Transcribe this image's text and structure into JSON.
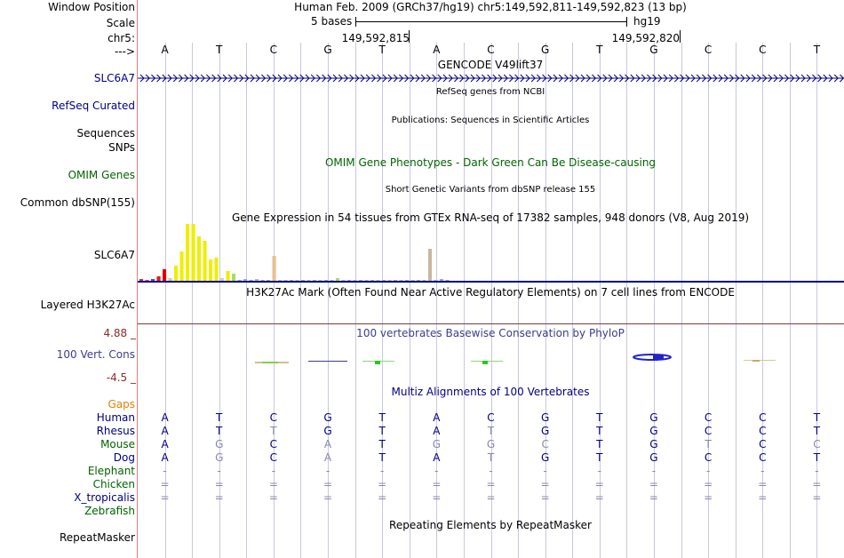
{
  "header": {
    "window_position_label": "Window Position",
    "window_position_value": "Human Feb. 2009 (GRCh37/hg19)   chr5:149,592,811-149,592,823 (13 bp)",
    "scale_label": "Scale",
    "scale_bar_text": "5 bases",
    "assembly": "hg19",
    "chrom_label": "chr5:",
    "coord_left": "149,592,815",
    "coord_right": "149,592,820",
    "strand_label": "--->"
  },
  "sequence": [
    "A",
    "T",
    "C",
    "G",
    "T",
    "A",
    "C",
    "G",
    "T",
    "G",
    "C",
    "C",
    "T"
  ],
  "tracks": {
    "gencode_title": "GENCODE V49lift37",
    "gencode_label": "SLC6A7",
    "refseq_title": "RefSeq genes from NCBI",
    "refseq_label": "RefSeq Curated",
    "publications_title": "Publications: Sequences in Scientific Articles",
    "sequences_label": "Sequences",
    "snps_label": "SNPs",
    "omim_title": "OMIM Gene Phenotypes - Dark Green Can Be Disease-causing",
    "omim_label": "OMIM Genes",
    "dbsnp_title": "Short Genetic Variants from dbSNP release 155",
    "dbsnp_label": "Common dbSNP(155)",
    "gtex_title": "Gene Expression in 54 tissues from GTEx RNA-seq of 17382 samples, 948 donors (V8, Aug 2019)",
    "gtex_label": "SLC6A7",
    "h3k27ac_title": "H3K27Ac Mark (Often Found Near Active Regulatory Elements) on 7 cell lines from ENCODE",
    "h3k27ac_label": "Layered H3K27Ac",
    "phylop_title": "100 vertebrates Basewise Conservation by PhyloP",
    "phylop_label": "100 Vert. Cons",
    "phylop_max": "4.88 _",
    "phylop_min": "-4.5 _",
    "multiz_title": "Multiz Alignments of 100 Vertebrates",
    "gaps_label": "Gaps",
    "repeat_title": "Repeating Elements by RepeatMasker",
    "repeat_label": "RepeatMasker"
  },
  "alignment": [
    {
      "species": "Human",
      "color": "#000080",
      "bases": [
        "A",
        "T",
        "C",
        "G",
        "T",
        "A",
        "C",
        "G",
        "T",
        "G",
        "C",
        "C",
        "T"
      ],
      "dim": [
        0,
        0,
        0,
        0,
        0,
        0,
        0,
        0,
        0,
        0,
        0,
        0,
        0
      ]
    },
    {
      "species": "Rhesus",
      "color": "#000080",
      "bases": [
        "A",
        "T",
        "T",
        "G",
        "T",
        "A",
        "T",
        "G",
        "T",
        "G",
        "C",
        "C",
        "T"
      ],
      "dim": [
        0,
        0,
        1,
        0,
        0,
        0,
        1,
        0,
        0,
        0,
        0,
        0,
        0
      ]
    },
    {
      "species": "Mouse",
      "color": "#006400",
      "bases": [
        "A",
        "G",
        "C",
        "A",
        "T",
        "G",
        "G",
        "C",
        "T",
        "G",
        "T",
        "C",
        "C"
      ],
      "dim": [
        0,
        1,
        0,
        1,
        0,
        1,
        1,
        1,
        0,
        0,
        1,
        0,
        1
      ]
    },
    {
      "species": "Dog",
      "color": "#000080",
      "bases": [
        "A",
        "G",
        "C",
        "A",
        "T",
        "A",
        "T",
        "G",
        "T",
        "G",
        "C",
        "C",
        "T"
      ],
      "dim": [
        0,
        1,
        0,
        1,
        0,
        0,
        1,
        0,
        0,
        0,
        0,
        0,
        0
      ]
    },
    {
      "species": "Elephant",
      "color": "#006400",
      "bases": [
        "-",
        "-",
        "-",
        "-",
        "-",
        "-",
        "-",
        "-",
        "-",
        "-",
        "-",
        "-",
        "-"
      ],
      "dim": [
        1,
        1,
        1,
        1,
        1,
        1,
        1,
        1,
        1,
        1,
        1,
        1,
        1
      ]
    },
    {
      "species": "Chicken",
      "color": "#006400",
      "bases": [
        "=",
        "=",
        "=",
        "=",
        "=",
        "=",
        "=",
        "=",
        "=",
        "=",
        "=",
        "=",
        "="
      ],
      "dim": [
        1,
        1,
        1,
        1,
        1,
        1,
        1,
        1,
        1,
        1,
        1,
        1,
        1
      ]
    },
    {
      "species": "X_tropicalis",
      "color": "#000080",
      "bases": [
        "=",
        "=",
        "=",
        "=",
        "=",
        "=",
        "=",
        "=",
        "=",
        "=",
        "=",
        "=",
        "="
      ],
      "dim": [
        1,
        1,
        1,
        1,
        1,
        1,
        1,
        1,
        1,
        1,
        1,
        1,
        1
      ]
    },
    {
      "species": "Zebrafish",
      "color": "#006400",
      "bases": [],
      "dim": []
    }
  ],
  "gtex_bars": [
    {
      "v": 2,
      "c": "#cc3333"
    },
    {
      "v": 1,
      "c": "#dd5555"
    },
    {
      "v": 2,
      "c": "#993399"
    },
    {
      "v": 5,
      "c": "#cc2222"
    },
    {
      "v": 13,
      "c": "#dd0000"
    },
    {
      "v": 3,
      "c": "#cccc99"
    },
    {
      "v": 17,
      "c": "#eeee00"
    },
    {
      "v": 33,
      "c": "#eeee00"
    },
    {
      "v": 64,
      "c": "#eeee00"
    },
    {
      "v": 64,
      "c": "#eeee00"
    },
    {
      "v": 50,
      "c": "#eeee00"
    },
    {
      "v": 45,
      "c": "#eeee00"
    },
    {
      "v": 24,
      "c": "#eeee00"
    },
    {
      "v": 26,
      "c": "#eeee00"
    },
    {
      "v": 3,
      "c": "#cccccc"
    },
    {
      "v": 11,
      "c": "#eeee00"
    },
    {
      "v": 8,
      "c": "#aadd55"
    },
    {
      "v": 1,
      "c": "#aaaaaa"
    },
    {
      "v": 2,
      "c": "#99aacc"
    },
    {
      "v": 1,
      "c": "#aaaaaa"
    },
    {
      "v": 2,
      "c": "#aabbcc"
    },
    {
      "v": 1,
      "c": "#aaaaaa"
    },
    {
      "v": 1,
      "c": "#aaaaaa"
    },
    {
      "v": 28,
      "c": "#e8c090"
    },
    {
      "v": 1,
      "c": "#bbbbbb"
    },
    {
      "v": 1,
      "c": "#bbbbbb"
    },
    {
      "v": 1,
      "c": "#aaaaaa"
    },
    {
      "v": 1,
      "c": "#bbbbbb"
    },
    {
      "v": 1,
      "c": "#aaaaaa"
    },
    {
      "v": 1,
      "c": "#bbbbbb"
    },
    {
      "v": 1,
      "c": "#aaaaaa"
    },
    {
      "v": 1,
      "c": "#bbbbbb"
    },
    {
      "v": 1,
      "c": "#aaaaaa"
    },
    {
      "v": 1,
      "c": "#bbbbbb"
    },
    {
      "v": 3,
      "c": "#aadd55"
    },
    {
      "v": 1,
      "c": "#bbbbbb"
    },
    {
      "v": 1,
      "c": "#aaaaaa"
    },
    {
      "v": 1,
      "c": "#bbbbbb"
    },
    {
      "v": 1,
      "c": "#aaaaaa"
    },
    {
      "v": 1,
      "c": "#bbbbbb"
    },
    {
      "v": 1,
      "c": "#aaaaaa"
    },
    {
      "v": 1,
      "c": "#bbbbbb"
    },
    {
      "v": 1,
      "c": "#aaaaaa"
    },
    {
      "v": 1,
      "c": "#bbbbbb"
    },
    {
      "v": 1,
      "c": "#aaaaaa"
    },
    {
      "v": 1,
      "c": "#bbbbbb"
    },
    {
      "v": 1,
      "c": "#aaaaaa"
    },
    {
      "v": 1,
      "c": "#bbbbbb"
    },
    {
      "v": 1,
      "c": "#aaaaaa"
    },
    {
      "v": 1,
      "c": "#bbbbbb"
    },
    {
      "v": 36,
      "c": "#c8b8a0"
    },
    {
      "v": 1,
      "c": "#bbbbbb"
    },
    {
      "v": 2,
      "c": "#99aacc"
    },
    {
      "v": 1,
      "c": "#aaaaaa"
    }
  ],
  "colors": {
    "label_navy": "#000080",
    "label_green": "#006400",
    "gaps_orange": "#e08000",
    "axis_red": "#8b2a2a",
    "grid_line": "#c8c8e0",
    "gene_navy": "#000080",
    "conservation_blue": "#3c3c8c"
  }
}
